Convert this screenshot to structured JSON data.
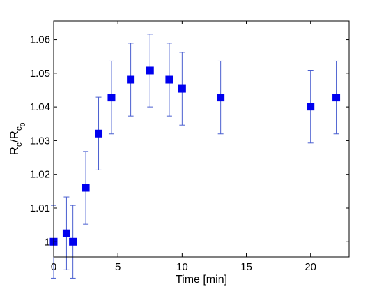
{
  "chart_data": {
    "type": "scatter",
    "xlabel": "Time [min]",
    "ylabel": {
      "base": "R",
      "sub1": "c",
      "mid": "/R",
      "sub2": "c",
      "subsub": "0"
    },
    "xlim": [
      0,
      23
    ],
    "ylim": [
      0.9955,
      1.0655
    ],
    "x_ticks": [
      0,
      5,
      10,
      15,
      20
    ],
    "y_ticks": [
      1,
      1.01,
      1.02,
      1.03,
      1.04,
      1.05,
      1.06
    ],
    "x_tick_labels": [
      "0",
      "5",
      "10",
      "15",
      "20"
    ],
    "y_tick_labels": [
      "1",
      "1.01",
      "1.02",
      "1.03",
      "1.04",
      "1.05",
      "1.06"
    ],
    "grid": false,
    "marker": "square",
    "colors": {
      "marker": "#0000ee",
      "errorbar": "#4a5fd0",
      "axes": "#000000"
    },
    "series": [
      {
        "points": [
          {
            "x": 0,
            "y": 1.0,
            "err": 0.0108
          },
          {
            "x": 1,
            "y": 1.0025,
            "err": 0.0108
          },
          {
            "x": 1.5,
            "y": 1.0,
            "err": 0.0108
          },
          {
            "x": 2.5,
            "y": 1.016,
            "err": 0.0108
          },
          {
            "x": 3.5,
            "y": 1.0321,
            "err": 0.0108
          },
          {
            "x": 4.5,
            "y": 1.0428,
            "err": 0.0108
          },
          {
            "x": 6,
            "y": 1.0481,
            "err": 0.0108
          },
          {
            "x": 7.5,
            "y": 1.0508,
            "err": 0.0108
          },
          {
            "x": 9,
            "y": 1.0481,
            "err": 0.0108
          },
          {
            "x": 10,
            "y": 1.0454,
            "err": 0.0108
          },
          {
            "x": 13,
            "y": 1.0428,
            "err": 0.0108
          },
          {
            "x": 20,
            "y": 1.0401,
            "err": 0.0108
          },
          {
            "x": 22,
            "y": 1.0428,
            "err": 0.0108
          }
        ]
      }
    ]
  }
}
